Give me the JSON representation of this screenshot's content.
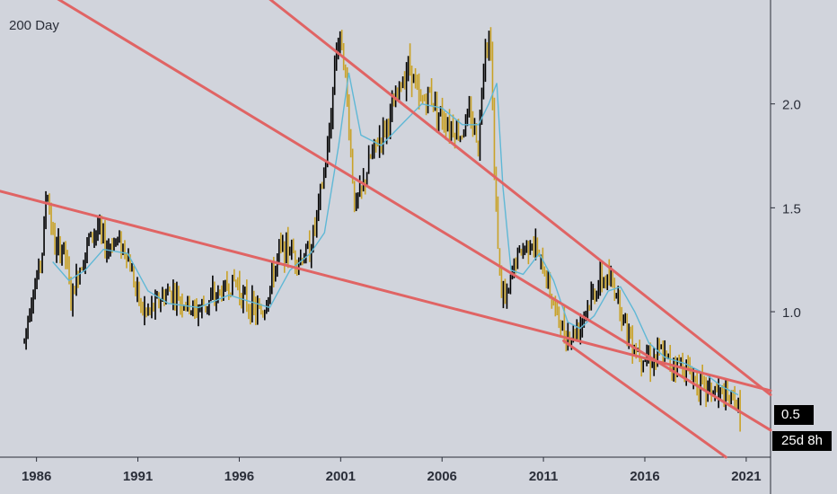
{
  "indicator": {
    "label": "200 Day"
  },
  "price_badge": {
    "value": "0.5"
  },
  "countdown_badge": {
    "value": "25d 8h"
  },
  "colors": {
    "background": "#d1d4dc",
    "up_candle": "#000000",
    "down_candle": "#c9a227",
    "moving_average": "#5fb8d6",
    "trendline": "#e06464",
    "axis_text": "#2a2e39"
  },
  "chart_data": {
    "type": "line",
    "title": "",
    "xlabel": "",
    "ylabel": "",
    "x_ticks": [
      "1986",
      "1991",
      "1996",
      "2001",
      "2006",
      "2011",
      "2016",
      "2021"
    ],
    "y_ticks": [
      "1.0",
      "1.5",
      "2.0"
    ],
    "xlim": [
      1984.2,
      2022.2
    ],
    "ylim": [
      0.3,
      2.5
    ],
    "price_points": [
      [
        1985.4,
        0.86
      ],
      [
        1985.7,
        1.05
      ],
      [
        1986.0,
        1.15
      ],
      [
        1986.3,
        1.3
      ],
      [
        1986.5,
        1.6
      ],
      [
        1986.9,
        1.3
      ],
      [
        1987.4,
        1.3
      ],
      [
        1987.7,
        1.05
      ],
      [
        1988.1,
        1.2
      ],
      [
        1988.6,
        1.35
      ],
      [
        1989.0,
        1.4
      ],
      [
        1989.5,
        1.3
      ],
      [
        1989.9,
        1.35
      ],
      [
        1990.4,
        1.3
      ],
      [
        1990.8,
        1.15
      ],
      [
        1991.2,
        1.0
      ],
      [
        1991.6,
        1.0
      ],
      [
        1992.0,
        1.05
      ],
      [
        1992.6,
        1.1
      ],
      [
        1993.2,
        1.05
      ],
      [
        1993.8,
        1.0
      ],
      [
        1994.5,
        1.05
      ],
      [
        1995.2,
        1.1
      ],
      [
        1995.8,
        1.15
      ],
      [
        1996.3,
        1.05
      ],
      [
        1996.8,
        1.0
      ],
      [
        1997.2,
        1.0
      ],
      [
        1997.6,
        1.15
      ],
      [
        1998.0,
        1.3
      ],
      [
        1998.5,
        1.3
      ],
      [
        1999.0,
        1.25
      ],
      [
        1999.5,
        1.3
      ],
      [
        1999.9,
        1.5
      ],
      [
        2000.4,
        1.8
      ],
      [
        2000.8,
        2.3
      ],
      [
        2001.1,
        2.3
      ],
      [
        2001.4,
        1.9
      ],
      [
        2001.7,
        1.5
      ],
      [
        2002.1,
        1.6
      ],
      [
        2002.5,
        1.75
      ],
      [
        2003.0,
        1.85
      ],
      [
        2003.5,
        1.95
      ],
      [
        2004.0,
        2.1
      ],
      [
        2004.4,
        2.2
      ],
      [
        2004.9,
        2.0
      ],
      [
        2005.4,
        2.05
      ],
      [
        2005.9,
        1.95
      ],
      [
        2006.4,
        1.9
      ],
      [
        2006.9,
        1.85
      ],
      [
        2007.4,
        1.95
      ],
      [
        2007.8,
        1.8
      ],
      [
        2008.1,
        2.3
      ],
      [
        2008.4,
        2.3
      ],
      [
        2008.6,
        1.6
      ],
      [
        2008.9,
        1.1
      ],
      [
        2009.2,
        1.05
      ],
      [
        2009.6,
        1.25
      ],
      [
        2010.0,
        1.3
      ],
      [
        2010.4,
        1.35
      ],
      [
        2010.8,
        1.25
      ],
      [
        2011.2,
        1.15
      ],
      [
        2011.6,
        1.0
      ],
      [
        2012.0,
        0.9
      ],
      [
        2012.4,
        0.88
      ],
      [
        2012.8,
        0.95
      ],
      [
        2013.3,
        1.05
      ],
      [
        2013.8,
        1.15
      ],
      [
        2014.2,
        1.15
      ],
      [
        2014.6,
        1.1
      ],
      [
        2015.0,
        0.95
      ],
      [
        2015.4,
        0.85
      ],
      [
        2015.8,
        0.8
      ],
      [
        2016.3,
        0.77
      ],
      [
        2016.8,
        0.8
      ],
      [
        2017.3,
        0.75
      ],
      [
        2017.8,
        0.75
      ],
      [
        2018.3,
        0.7
      ],
      [
        2018.8,
        0.64
      ],
      [
        2019.3,
        0.62
      ],
      [
        2019.8,
        0.6
      ],
      [
        2020.1,
        0.56
      ],
      [
        2020.4,
        0.6
      ],
      [
        2020.7,
        0.5
      ]
    ],
    "series": [
      {
        "values": [
          [
            1986.8,
            1.24
          ],
          [
            1987.6,
            1.15
          ],
          [
            1988.4,
            1.2
          ],
          [
            1989.3,
            1.3
          ],
          [
            1990.5,
            1.28
          ],
          [
            1991.5,
            1.1
          ],
          [
            1992.5,
            1.04
          ],
          [
            1994.0,
            1.02
          ],
          [
            1995.5,
            1.08
          ],
          [
            1996.5,
            1.05
          ],
          [
            1997.5,
            1.02
          ],
          [
            1998.5,
            1.2
          ],
          [
            1999.5,
            1.28
          ],
          [
            2000.2,
            1.38
          ],
          [
            2000.9,
            1.8
          ],
          [
            2001.4,
            2.15
          ],
          [
            2002.0,
            1.85
          ],
          [
            2003.0,
            1.8
          ],
          [
            2004.0,
            1.9
          ],
          [
            2005.0,
            2.0
          ],
          [
            2006.0,
            1.98
          ],
          [
            2007.0,
            1.9
          ],
          [
            2007.8,
            1.9
          ],
          [
            2008.3,
            2.0
          ],
          [
            2008.7,
            2.1
          ],
          [
            2009.0,
            1.6
          ],
          [
            2009.4,
            1.2
          ],
          [
            2010.0,
            1.18
          ],
          [
            2010.8,
            1.28
          ],
          [
            2011.5,
            1.15
          ],
          [
            2012.2,
            0.95
          ],
          [
            2012.8,
            0.92
          ],
          [
            2013.5,
            0.98
          ],
          [
            2014.2,
            1.1
          ],
          [
            2014.8,
            1.12
          ],
          [
            2015.5,
            1.0
          ],
          [
            2016.2,
            0.85
          ],
          [
            2017.0,
            0.78
          ],
          [
            2018.0,
            0.75
          ],
          [
            2019.0,
            0.7
          ],
          [
            2019.8,
            0.64
          ],
          [
            2020.6,
            0.6
          ]
        ]
      }
    ],
    "trendlines": [
      {
        "from": [
          1984.2,
          1.58
        ],
        "to": [
          2022.2,
          0.62
        ]
      },
      {
        "from": [
          1986.8,
          2.52
        ],
        "to": [
          2022.2,
          0.43
        ]
      },
      {
        "from": [
          1997.3,
          2.52
        ],
        "to": [
          2022.2,
          0.6
        ]
      },
      {
        "from": [
          2012.0,
          0.86
        ],
        "to": [
          2020.0,
          0.3
        ]
      }
    ],
    "grid": false
  }
}
